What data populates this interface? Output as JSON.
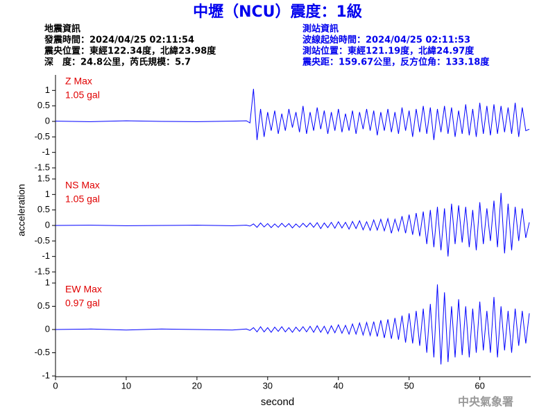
{
  "header": {
    "title": "中壢（NCU）震度：1級",
    "left": [
      "地震資訊",
      "發震時間：2024/04/25 02:11:54",
      "震央位置：東經122.34度，北緯23.98度",
      "深　度：24.8公里，芮氏規模：5.7"
    ],
    "right": [
      "測站資訊",
      "波線起始時間：2024/04/25 02:11:53",
      "測站位置：東經121.19度，北緯24.97度",
      "震央距：159.67公里，反方位角：133.18度"
    ],
    "watermark": "中央氣象署"
  },
  "chart_data": [
    {
      "type": "line",
      "annotations": [
        "Z Max",
        "1.05 gal"
      ],
      "annotation_color": "#e00000",
      "color": "#0000ff",
      "xlim": [
        0,
        67
      ],
      "ylim": [
        -1.5,
        1.5
      ],
      "yticks": [
        -1.5,
        -1,
        -0.5,
        0,
        0.5,
        1
      ],
      "x": [
        0,
        5,
        10,
        15,
        20,
        25,
        27,
        27.5,
        28,
        28.5,
        29,
        29.5,
        30,
        30.5,
        31,
        31.5,
        32,
        32.5,
        33,
        33.5,
        34,
        34.5,
        35,
        35.5,
        36,
        36.5,
        37,
        37.5,
        38,
        38.5,
        39,
        39.5,
        40,
        40.5,
        41,
        41.5,
        42,
        42.5,
        43,
        43.5,
        44,
        44.5,
        45,
        45.5,
        46,
        46.5,
        47,
        47.5,
        48,
        48.5,
        49,
        49.5,
        50,
        50.5,
        51,
        51.5,
        52,
        52.5,
        53,
        53.5,
        54,
        54.5,
        55,
        55.5,
        56,
        56.5,
        57,
        57.5,
        58,
        58.5,
        59,
        59.5,
        60,
        60.5,
        61,
        61.5,
        62,
        62.5,
        63,
        63.5,
        64,
        64.5,
        65,
        65.5,
        66,
        66.5,
        67
      ],
      "values": [
        0.01,
        -0.01,
        0.02,
        0,
        -0.01,
        0.01,
        0.02,
        -0.05,
        1.05,
        -0.6,
        0.4,
        -0.5,
        0.3,
        -0.3,
        0.35,
        -0.4,
        0.25,
        -0.3,
        0.4,
        -0.2,
        0.3,
        -0.35,
        0.5,
        -0.4,
        0.3,
        -0.3,
        0.45,
        -0.25,
        0.35,
        -0.4,
        0.3,
        -0.3,
        0.4,
        -0.35,
        0.25,
        -0.3,
        0.35,
        -0.4,
        0.3,
        -0.25,
        0.4,
        -0.3,
        0.35,
        -0.45,
        0.3,
        -0.3,
        0.4,
        -0.35,
        0.3,
        -0.4,
        0.45,
        -0.3,
        0.35,
        -0.5,
        0.4,
        -0.35,
        0.5,
        -0.4,
        0.45,
        -0.6,
        0.4,
        -0.35,
        0.5,
        -0.4,
        0.45,
        -0.5,
        0.35,
        -0.4,
        0.55,
        -0.45,
        0.4,
        -0.5,
        0.6,
        -0.4,
        0.5,
        -0.45,
        0.55,
        -0.4,
        0.5,
        -0.35,
        0.45,
        -0.4,
        0.6,
        -0.5,
        0.45,
        -0.3,
        -0.25
      ]
    },
    {
      "type": "line",
      "annotations": [
        "NS Max",
        "1.05 gal"
      ],
      "annotation_color": "#e00000",
      "color": "#0000ff",
      "ylabel": "acceleration",
      "xlim": [
        0,
        67
      ],
      "ylim": [
        -1.5,
        1.5
      ],
      "yticks": [
        -1.5,
        -1,
        -0.5,
        0,
        0.5,
        1,
        1.5
      ],
      "x": [
        0,
        5,
        10,
        15,
        20,
        25,
        27,
        27.5,
        28,
        28.5,
        29,
        29.5,
        30,
        30.5,
        31,
        31.5,
        32,
        32.5,
        33,
        33.5,
        34,
        34.5,
        35,
        35.5,
        36,
        36.5,
        37,
        37.5,
        38,
        38.5,
        39,
        39.5,
        40,
        40.5,
        41,
        41.5,
        42,
        42.5,
        43,
        43.5,
        44,
        44.5,
        45,
        45.5,
        46,
        46.5,
        47,
        47.5,
        48,
        48.5,
        49,
        49.5,
        50,
        50.5,
        51,
        51.5,
        52,
        52.5,
        53,
        53.5,
        54,
        54.5,
        55,
        55.5,
        56,
        56.5,
        57,
        57.5,
        58,
        58.5,
        59,
        59.5,
        60,
        60.5,
        61,
        61.5,
        62,
        62.5,
        63,
        63.5,
        64,
        64.5,
        65,
        65.5,
        66,
        66.5,
        67
      ],
      "values": [
        0,
        0.01,
        -0.01,
        0,
        0.01,
        -0.01,
        0.01,
        -0.02,
        0.05,
        -0.06,
        0.08,
        -0.05,
        0.06,
        -0.07,
        0.05,
        -0.06,
        0.07,
        -0.05,
        0.06,
        -0.08,
        0.05,
        -0.06,
        0.07,
        -0.05,
        0.08,
        -0.06,
        0.09,
        -0.1,
        0.08,
        -0.07,
        0.1,
        -0.09,
        0.12,
        -0.08,
        0.1,
        -0.12,
        0.13,
        -0.1,
        0.15,
        -0.14,
        0.12,
        -0.16,
        0.18,
        -0.15,
        0.2,
        -0.17,
        0.22,
        -0.25,
        0.2,
        -0.18,
        0.3,
        -0.25,
        0.35,
        -0.3,
        0.4,
        -0.35,
        0.45,
        -0.6,
        0.5,
        -0.7,
        0.6,
        -0.8,
        0.55,
        -1.0,
        0.7,
        -0.6,
        0.65,
        -0.55,
        0.6,
        -0.7,
        0.5,
        -0.8,
        0.75,
        -0.6,
        0.55,
        -0.5,
        0.8,
        -0.7,
        1.05,
        -0.9,
        0.7,
        -0.8,
        0.6,
        -0.5,
        0.55,
        -0.4,
        0.1
      ]
    },
    {
      "type": "line",
      "annotations": [
        "EW Max",
        "0.97 gal"
      ],
      "annotation_color": "#e00000",
      "color": "#0000ff",
      "xlabel": "second",
      "xlim": [
        0,
        67
      ],
      "xticks": [
        0,
        10,
        20,
        30,
        40,
        50,
        60
      ],
      "ylim": [
        -1,
        1
      ],
      "yticks": [
        -1,
        -0.5,
        0,
        0.5,
        1
      ],
      "x": [
        0,
        5,
        10,
        15,
        20,
        25,
        27,
        27.5,
        28,
        28.5,
        29,
        29.5,
        30,
        30.5,
        31,
        31.5,
        32,
        32.5,
        33,
        33.5,
        34,
        34.5,
        35,
        35.5,
        36,
        36.5,
        37,
        37.5,
        38,
        38.5,
        39,
        39.5,
        40,
        40.5,
        41,
        41.5,
        42,
        42.5,
        43,
        43.5,
        44,
        44.5,
        45,
        45.5,
        46,
        46.5,
        47,
        47.5,
        48,
        48.5,
        49,
        49.5,
        50,
        50.5,
        51,
        51.5,
        52,
        52.5,
        53,
        53.5,
        54,
        54.5,
        55,
        55.5,
        56,
        56.5,
        57,
        57.5,
        58,
        58.5,
        59,
        59.5,
        60,
        60.5,
        61,
        61.5,
        62,
        62.5,
        63,
        63.5,
        64,
        64.5,
        65,
        65.5,
        66,
        66.5,
        67
      ],
      "values": [
        0,
        0.01,
        -0.01,
        0.01,
        0,
        -0.01,
        0.01,
        -0.02,
        0.04,
        -0.05,
        0.06,
        -0.05,
        0.04,
        -0.06,
        0.05,
        -0.04,
        0.06,
        -0.05,
        0.04,
        -0.06,
        0.05,
        -0.04,
        0.06,
        -0.05,
        0.07,
        -0.06,
        0.08,
        -0.06,
        0.07,
        -0.09,
        0.08,
        -0.07,
        0.1,
        -0.08,
        0.09,
        -0.1,
        0.12,
        -0.1,
        0.14,
        -0.12,
        0.15,
        -0.13,
        0.17,
        -0.15,
        0.2,
        -0.18,
        0.22,
        -0.2,
        0.25,
        -0.22,
        0.3,
        -0.28,
        0.35,
        -0.3,
        0.4,
        -0.35,
        0.45,
        -0.5,
        0.55,
        -0.6,
        0.97,
        -0.75,
        0.8,
        -0.7,
        0.5,
        -0.6,
        0.65,
        -0.55,
        0.5,
        -0.6,
        0.45,
        -0.5,
        0.6,
        -0.45,
        0.4,
        -0.5,
        0.7,
        -0.6,
        0.5,
        -0.45,
        0.4,
        -0.5,
        0.45,
        -0.35,
        0.4,
        -0.3,
        0.35
      ]
    }
  ]
}
